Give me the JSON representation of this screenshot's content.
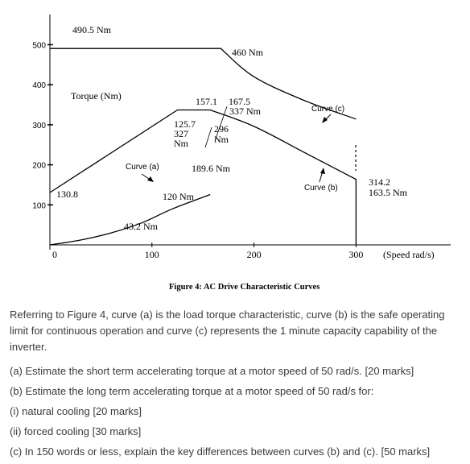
{
  "chart_data": {
    "type": "line",
    "xlabel": "(Speed rad/s)",
    "ylabel": "Torque (Nm)",
    "xlim": [
      0,
      330
    ],
    "ylim": [
      0,
      520
    ],
    "x_ticks": [
      {
        "value": 0,
        "label": "0"
      },
      {
        "value": 100,
        "label": "100"
      },
      {
        "value": 200,
        "label": "200"
      },
      {
        "value": 300,
        "label": "300"
      }
    ],
    "y_ticks": [
      {
        "value": 100,
        "label": "100"
      },
      {
        "value": 200,
        "label": "200"
      },
      {
        "value": 300,
        "label": "300"
      },
      {
        "value": 400,
        "label": "400"
      },
      {
        "value": 500,
        "label": "500"
      }
    ],
    "series": [
      {
        "name": "Curve (a)",
        "x": [
          0,
          30,
          60,
          90,
          120,
          157.1
        ],
        "y": [
          0,
          12,
          30,
          55,
          90,
          125.7
        ]
      },
      {
        "name": "Curve (b)",
        "x": [
          0,
          125,
          157.1,
          200,
          250,
          300,
          300
        ],
        "y": [
          130.8,
          337,
          337,
          296,
          230,
          163.5,
          0
        ]
      },
      {
        "name": "Curve (c)",
        "x": [
          0,
          167.5,
          200,
          250,
          300
        ],
        "y": [
          490.5,
          490.5,
          420,
          360,
          314.2
        ]
      }
    ],
    "annotations": {
      "a490": "490.5 Nm",
      "a460": "460 Nm",
      "a157": "157.1",
      "a167": "167.5",
      "a337": "337 Nm",
      "a125": "125.7",
      "a327": "327",
      "a327u": "Nm",
      "a296": "296",
      "a296u": "Nm",
      "a189": "189.6 Nm",
      "a120": "120 Nm",
      "a130": "130.8",
      "a43": "43.2 Nm",
      "a314": "314.2",
      "a163": "163.5 Nm",
      "curve_a": "Curve (a)",
      "curve_b": "Curve (b)",
      "curve_c": "Curve (c)"
    },
    "caption": "Figure 4: AC Drive Characteristic Curves"
  },
  "question": {
    "intro": "Referring to Figure 4, curve (a) is the load torque characteristic, curve (b) is the safe operating limit for continuous operation and curve (c) represents the 1 minute capacity capability of the inverter.",
    "items": [
      "(a) Estimate the short term accelerating torque at a motor speed of 50 rad/s. [20 marks]",
      "(b) Estimate the long term accelerating torque at a motor speed of 50 rad/s for:",
      "(i) natural cooling [20 marks]",
      "(ii) forced cooling [30 marks]",
      "(c) In 150 words or less, explain the key differences between curves (b) and (c). [50 marks]"
    ]
  }
}
